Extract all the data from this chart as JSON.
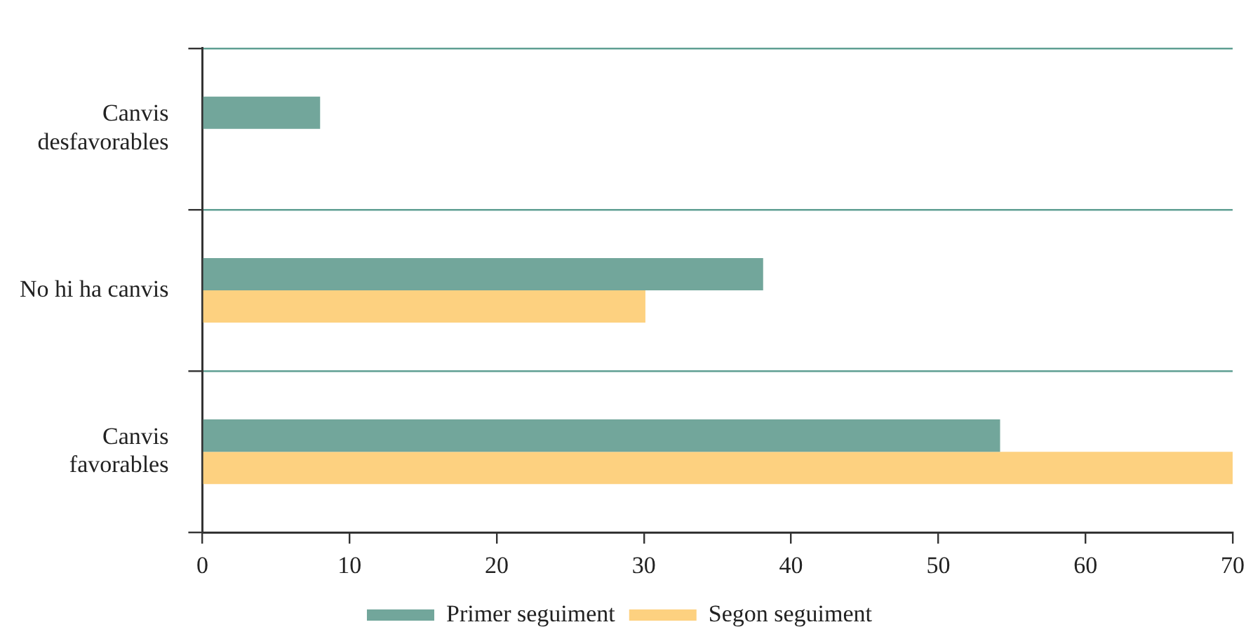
{
  "chart_data": {
    "type": "bar",
    "orientation": "horizontal",
    "categories": [
      "Canvis desfavorables",
      "No hi ha canvis",
      "Canvis favorables"
    ],
    "series": [
      {
        "name": "Primer seguiment",
        "color": "#72a69b",
        "values": [
          8,
          38.1,
          54.2
        ]
      },
      {
        "name": "Segon seguiment",
        "color": "#fdd180",
        "values": [
          null,
          30.1,
          70
        ]
      }
    ],
    "xlim": [
      0,
      70
    ],
    "xticks": [
      0,
      10,
      20,
      30,
      40,
      50,
      60,
      70
    ],
    "grid": "y",
    "legend": "bottom"
  }
}
